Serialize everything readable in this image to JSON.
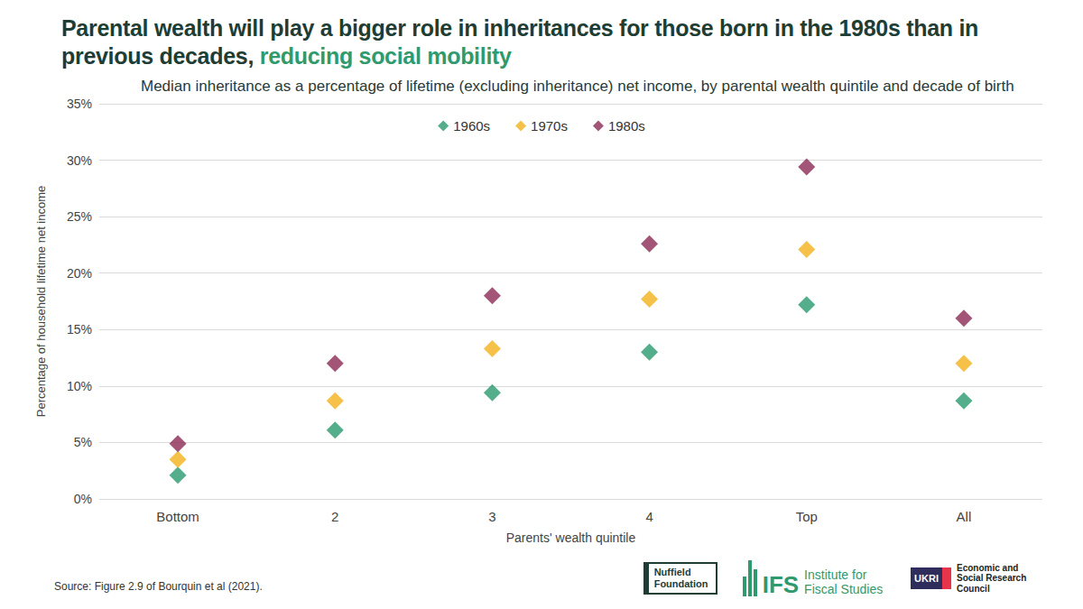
{
  "chart_data": {
    "type": "scatter",
    "title": [
      "Parental wealth will play a bigger role in inheritances for those born in the 1980s than in previous decades,",
      "reducing social mobility"
    ],
    "subtitle": "Median inheritance as a percentage of lifetime (excluding inheritance) net income, by parental wealth quintile and decade of birth",
    "x_label": "Parents' wealth quintile",
    "y_label": "Percentage of household lifetime net income",
    "categories": [
      "Bottom",
      "2",
      "3",
      "4",
      "Top",
      "All"
    ],
    "series": [
      {
        "name": "1960s",
        "color": "#2a9a6e",
        "values": [
          2.1,
          6.1,
          9.4,
          13.0,
          17.2,
          8.7
        ]
      },
      {
        "name": "1970s",
        "color": "#f2b21b",
        "values": [
          3.5,
          8.7,
          13.3,
          17.7,
          22.1,
          12.0
        ]
      },
      {
        "name": "1980s",
        "color": "#8c2a55",
        "values": [
          4.9,
          12.0,
          18.0,
          22.6,
          29.4,
          16.0
        ]
      }
    ],
    "marker": "diamond",
    "ylim": [
      0,
      35
    ],
    "yticks": [
      {
        "value": 0,
        "label": "0%"
      },
      {
        "value": 5,
        "label": "5%"
      },
      {
        "value": 10,
        "label": "10%"
      },
      {
        "value": 15,
        "label": "15%"
      },
      {
        "value": 20,
        "label": "20%"
      },
      {
        "value": 25,
        "label": "25%"
      },
      {
        "value": 30,
        "label": "30%"
      },
      {
        "value": 35,
        "label": "35%"
      }
    ],
    "grid": true,
    "legend": "top",
    "source": "Source: Figure 2.9 of Bourquin et al (2021).",
    "logos": [
      "Nuffield Foundation",
      "IFS",
      "Institute for Fiscal Studies",
      "UKRI",
      "Economic and Social Research Council"
    ]
  }
}
